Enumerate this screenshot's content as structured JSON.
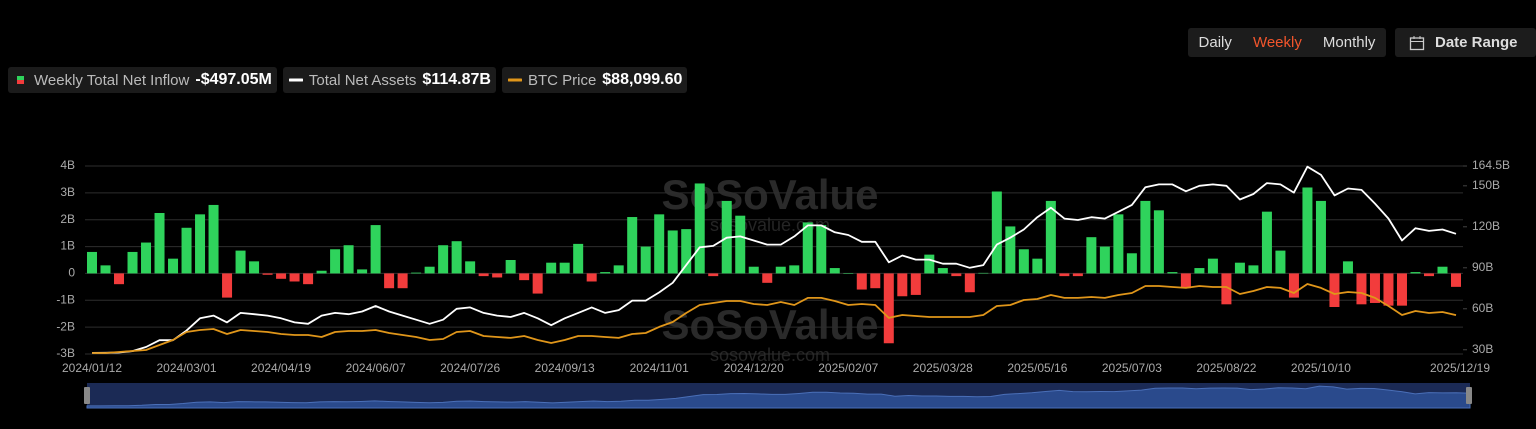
{
  "controls": {
    "intervals": [
      "Daily",
      "Weekly",
      "Monthly"
    ],
    "active": 1,
    "date_range": "Date Range"
  },
  "chart_data": {
    "type": "bar",
    "watermark": "SoSoValue",
    "watermark_url": "sosovalue.com",
    "categories": [
      "2024/01/12",
      null,
      null,
      null,
      null,
      null,
      null,
      "2024/03/01",
      null,
      null,
      null,
      null,
      null,
      null,
      "2024/04/19",
      null,
      null,
      null,
      null,
      null,
      null,
      "2024/06/07",
      null,
      null,
      null,
      null,
      null,
      null,
      "2024/07/26",
      null,
      null,
      null,
      null,
      null,
      null,
      "2024/09/13",
      null,
      null,
      null,
      null,
      null,
      null,
      "2024/11/01",
      null,
      null,
      null,
      null,
      null,
      null,
      "2024/12/20",
      null,
      null,
      null,
      null,
      null,
      null,
      "2025/02/07",
      null,
      null,
      null,
      null,
      null,
      null,
      "2025/03/28",
      null,
      null,
      null,
      null,
      null,
      null,
      "2025/05/16",
      null,
      null,
      null,
      null,
      null,
      null,
      "2025/07/03",
      null,
      null,
      null,
      null,
      null,
      null,
      "2025/08/22",
      null,
      null,
      null,
      null,
      null,
      null,
      "2025/10/10",
      null,
      null,
      null,
      null,
      null,
      null,
      null,
      null,
      null,
      "2025/12/19"
    ],
    "ylim": [
      -3,
      4
    ],
    "yticks": [
      {
        "value": -3,
        "label": "-3B"
      },
      {
        "value": -2,
        "label": "-2B"
      },
      {
        "value": -1,
        "label": "-1B"
      },
      0,
      {
        "value": 1,
        "label": "1B"
      },
      {
        "value": 2,
        "label": "2B"
      },
      {
        "value": 3,
        "label": "3B"
      },
      {
        "value": 4,
        "label": "4B"
      }
    ],
    "y2lim": [
      26.9,
      164.5
    ],
    "y2ticks": [
      {
        "value": 30,
        "label": "30B"
      },
      {
        "value": 60,
        "label": "60B"
      },
      {
        "value": 90,
        "label": "90B"
      },
      {
        "value": 120,
        "label": "120B"
      },
      {
        "value": 150,
        "label": "150B"
      },
      {
        "value": 164.5,
        "label": "164.5B"
      }
    ],
    "y3lim": [
      41800,
      265500
    ],
    "grid": true,
    "series": [
      {
        "name": "Weekly Total Net Inflow",
        "legend_value": "-$497.05M",
        "type": "bar",
        "color": "#2fd35c",
        "negative_color": "#f23c3c",
        "values": [
          0.8,
          0.3,
          -0.4,
          0.8,
          1.15,
          2.25,
          0.55,
          1.7,
          2.2,
          2.55,
          -0.9,
          0.85,
          0.45,
          -0.05,
          -0.2,
          -0.3,
          -0.4,
          0.1,
          0.9,
          1.05,
          0.15,
          1.8,
          -0.55,
          -0.55,
          0.03,
          0.25,
          1.05,
          1.2,
          0.45,
          -0.1,
          -0.15,
          0.5,
          -0.25,
          -0.75,
          0.4,
          0.4,
          1.1,
          -0.3,
          0.05,
          0.3,
          2.1,
          1.0,
          2.2,
          1.6,
          1.65,
          3.35,
          -0.1,
          2.7,
          2.15,
          0.25,
          -0.35,
          0.25,
          0.3,
          1.9,
          1.8,
          0.2,
          0,
          -0.6,
          -0.55,
          -2.6,
          -0.85,
          -0.8,
          0.7,
          0.2,
          -0.1,
          -0.7,
          0.02,
          3.05,
          1.75,
          0.9,
          0.55,
          2.7,
          -0.1,
          -0.1,
          1.35,
          1.0,
          2.2,
          0.75,
          2.7,
          2.35,
          0.05,
          -0.55,
          0.2,
          0.55,
          -1.15,
          0.4,
          0.3,
          2.3,
          0.85,
          -0.9,
          3.2,
          2.7,
          -1.25,
          0.45,
          -1.15,
          -1.1,
          -1.2,
          -1.2,
          0.05,
          -0.1,
          0.25,
          -0.5
        ]
      },
      {
        "name": "Total Net Assets",
        "legend_value": "$114.87B",
        "type": "line",
        "axis": "y2",
        "color": "#ffffff",
        "values": [
          27.7,
          27.8,
          28,
          29,
          32,
          37,
          37,
          44,
          53,
          55,
          50,
          57,
          56,
          55,
          53,
          50,
          49,
          55,
          57,
          56,
          58,
          62,
          58,
          55,
          52,
          49,
          52,
          60,
          61,
          57,
          55,
          54,
          57,
          53,
          48,
          53,
          57,
          61,
          57,
          59,
          66,
          66,
          72,
          79,
          92,
          105,
          106,
          112,
          113,
          110,
          107,
          107,
          113,
          121,
          121,
          116,
          114,
          109,
          109,
          94,
          99,
          96,
          96,
          93,
          93,
          90,
          92,
          107,
          112,
          118,
          127,
          134,
          126,
          125,
          127,
          126,
          131,
          136,
          149,
          151,
          151,
          146,
          150,
          151,
          150,
          140,
          144,
          152,
          151,
          145,
          164,
          158,
          143,
          148,
          147,
          137,
          126,
          110,
          119,
          117,
          118,
          114.87
        ]
      },
      {
        "name": "BTC Price",
        "legend_value": "$88,099.60",
        "type": "line",
        "axis": "y3",
        "color": "#e0961a",
        "values": [
          43000,
          43000,
          44200,
          45400,
          46600,
          52500,
          58500,
          68000,
          70400,
          71600,
          65600,
          70400,
          69200,
          68000,
          65600,
          64400,
          64400,
          62000,
          68000,
          69200,
          69200,
          70400,
          66800,
          64400,
          62000,
          58500,
          59700,
          68000,
          69200,
          63200,
          62000,
          60900,
          63200,
          58500,
          54900,
          58500,
          63200,
          63200,
          62000,
          60900,
          65600,
          66800,
          74000,
          79900,
          90600,
          100100,
          102500,
          104900,
          104900,
          101300,
          100100,
          103700,
          100100,
          108500,
          108500,
          104900,
          100100,
          101300,
          100100,
          84700,
          88200,
          87000,
          85800,
          85800,
          85800,
          85800,
          88200,
          98900,
          100100,
          106100,
          107300,
          112000,
          108500,
          108500,
          109600,
          108500,
          112000,
          114400,
          122700,
          122700,
          121500,
          120400,
          122700,
          121500,
          121500,
          113200,
          116800,
          121500,
          120400,
          114400,
          125100,
          120400,
          113200,
          115600,
          114400,
          108500,
          98900,
          88200,
          93000,
          90600,
          91800,
          88099.6
        ]
      }
    ]
  }
}
